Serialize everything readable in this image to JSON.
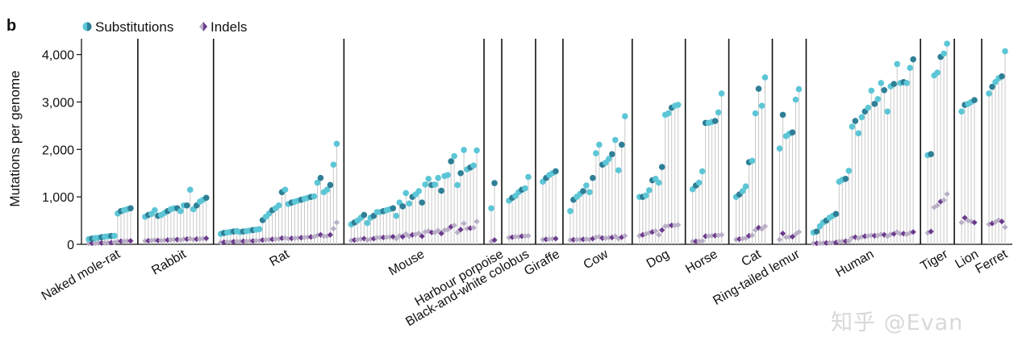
{
  "panel_label": "b",
  "watermark": "知乎 @Evan",
  "colors": {
    "sub_light": "#5cc6d6",
    "sub_dark": "#2e7f96",
    "indel_dark": "#6b3a8c",
    "indel_light": "#b9aec6",
    "stem": "#c8c8c8",
    "axis": "#111111"
  },
  "chart_data": {
    "type": "scatter",
    "title": "",
    "ylabel": "Mutations per genome",
    "ylim": [
      0,
      4300
    ],
    "yticks": [
      0,
      1000,
      2000,
      3000,
      4000
    ],
    "ytick_labels": [
      "0",
      "1,000",
      "2,000",
      "3,000",
      "4,000"
    ],
    "legend": {
      "position": "top-left",
      "entries": [
        {
          "label": "Substitutions",
          "marker": "circle"
        },
        {
          "label": "Indels",
          "marker": "diamond"
        }
      ]
    },
    "species": [
      {
        "name": "Naked mole-rat",
        "substitutions": [
          110,
          120,
          130,
          140,
          150,
          160,
          170,
          175,
          180,
          650,
          700,
          720,
          740,
          760
        ],
        "indels": [
          20,
          22,
          25,
          28,
          30,
          30,
          35,
          35,
          38,
          60,
          65,
          65,
          70,
          72
        ]
      },
      {
        "name": "Rabbit",
        "substitutions": [
          580,
          620,
          640,
          720,
          600,
          620,
          660,
          700,
          740,
          760,
          760,
          700,
          820,
          820,
          1150,
          740,
          820,
          900,
          940,
          980
        ],
        "indels": [
          70,
          75,
          80,
          90,
          80,
          80,
          85,
          90,
          95,
          100,
          100,
          90,
          110,
          110,
          120,
          100,
          110,
          115,
          120,
          125
        ]
      },
      {
        "name": "Rat",
        "substitutions": [
          220,
          240,
          250,
          260,
          270,
          280,
          260,
          270,
          280,
          290,
          300,
          310,
          320,
          510,
          580,
          650,
          720,
          760,
          820,
          1100,
          1150,
          850,
          880,
          900,
          920,
          940,
          960,
          980,
          1000,
          1010,
          1300,
          1400,
          1100,
          1150,
          1250,
          1680,
          2120
        ],
        "indels": [
          40,
          45,
          50,
          50,
          55,
          60,
          60,
          65,
          65,
          70,
          70,
          75,
          80,
          90,
          95,
          100,
          105,
          110,
          115,
          130,
          135,
          120,
          125,
          130,
          135,
          140,
          145,
          150,
          155,
          160,
          190,
          200,
          170,
          175,
          200,
          330,
          460
        ]
      },
      {
        "name": "Mouse",
        "substitutions": [
          420,
          460,
          500,
          560,
          620,
          450,
          560,
          600,
          680,
          680,
          700,
          720,
          740,
          760,
          600,
          880,
          800,
          1080,
          860,
          1000,
          1050,
          1120,
          880,
          1260,
          1380,
          1250,
          1260,
          1400,
          1130,
          1440,
          1460,
          1750,
          1860,
          1250,
          1500,
          1990,
          1580,
          1620,
          1660,
          1980
        ],
        "indels": [
          80,
          90,
          100,
          110,
          120,
          90,
          110,
          120,
          140,
          140,
          145,
          150,
          155,
          160,
          120,
          180,
          160,
          220,
          170,
          200,
          210,
          230,
          170,
          260,
          280,
          250,
          250,
          290,
          230,
          300,
          310,
          370,
          400,
          250,
          310,
          440,
          330,
          340,
          350,
          480
        ]
      },
      {
        "name": "Harbour porpoise",
        "substitutions": [
          760,
          1290
        ],
        "indels": [
          60,
          90
        ]
      },
      {
        "name": "Black-and-white colobus",
        "substitutions": [
          920,
          980,
          1020,
          1100,
          1150,
          1180,
          1420
        ],
        "indels": [
          140,
          150,
          160,
          160,
          170,
          175,
          180
        ]
      },
      {
        "name": "Giraffe",
        "substitutions": [
          1320,
          1400,
          1460,
          1500,
          1540
        ],
        "indels": [
          100,
          105,
          110,
          115,
          120
        ]
      },
      {
        "name": "Cow",
        "substitutions": [
          700,
          940,
          1000,
          1060,
          1120,
          1240,
          1100,
          1400,
          1920,
          2100,
          1680,
          1720,
          1800,
          1900,
          2200,
          1560,
          2100,
          2700
        ],
        "indels": [
          90,
          95,
          100,
          100,
          105,
          110,
          100,
          120,
          150,
          160,
          130,
          130,
          140,
          145,
          170,
          120,
          150,
          180
        ]
      },
      {
        "name": "Dog",
        "substitutions": [
          1000,
          1000,
          1030,
          1140,
          1350,
          1380,
          1300,
          1630,
          2730,
          2760,
          2880,
          2920,
          2940
        ],
        "indels": [
          180,
          200,
          220,
          240,
          260,
          280,
          200,
          300,
          380,
          390,
          400,
          400,
          410
        ]
      },
      {
        "name": "Horse",
        "substitutions": [
          1160,
          1240,
          1300,
          1540,
          2560,
          2560,
          2580,
          2600,
          2780,
          3180
        ],
        "indels": [
          60,
          62,
          65,
          70,
          170,
          175,
          180,
          185,
          190,
          200
        ]
      },
      {
        "name": "Cat",
        "substitutions": [
          1000,
          1050,
          1120,
          1220,
          1730,
          1760,
          2760,
          3280,
          2920,
          3520
        ],
        "indels": [
          100,
          110,
          120,
          130,
          180,
          190,
          300,
          350,
          320,
          380
        ]
      },
      {
        "name": "Ring-tailed lemur",
        "substitutions": [
          2020,
          2730,
          2280,
          2330,
          2360,
          3050,
          3270
        ],
        "indels": [
          100,
          230,
          150,
          155,
          160,
          210,
          260
        ]
      },
      {
        "name": "Human",
        "substitutions": [
          250,
          270,
          380,
          460,
          500,
          560,
          600,
          640,
          1320,
          1360,
          1380,
          1550,
          2480,
          2600,
          2340,
          2680,
          2800,
          2880,
          3240,
          2960,
          3060,
          3400,
          3250,
          2800,
          3330,
          3380,
          3800,
          3400,
          3420,
          3400,
          3720,
          3900
        ],
        "indels": [
          20,
          22,
          25,
          28,
          30,
          32,
          35,
          38,
          60,
          62,
          65,
          70,
          140,
          150,
          130,
          160,
          170,
          175,
          190,
          180,
          185,
          210,
          200,
          170,
          210,
          220,
          260,
          220,
          225,
          210,
          240,
          260
        ]
      },
      {
        "name": "Tiger",
        "substitutions": [
          1880,
          1900,
          3560,
          3620,
          3950,
          4020,
          4230
        ],
        "indels": [
          240,
          270,
          780,
          820,
          900,
          930,
          1060
        ]
      },
      {
        "name": "Lion",
        "substitutions": [
          2800,
          2940,
          2960,
          3000,
          3040
        ],
        "indels": [
          460,
          560,
          500,
          480,
          460
        ]
      },
      {
        "name": "Ferret",
        "substitutions": [
          3180,
          3320,
          3420,
          3500,
          3540,
          4070
        ],
        "indels": [
          420,
          440,
          470,
          510,
          480,
          360
        ]
      }
    ]
  }
}
